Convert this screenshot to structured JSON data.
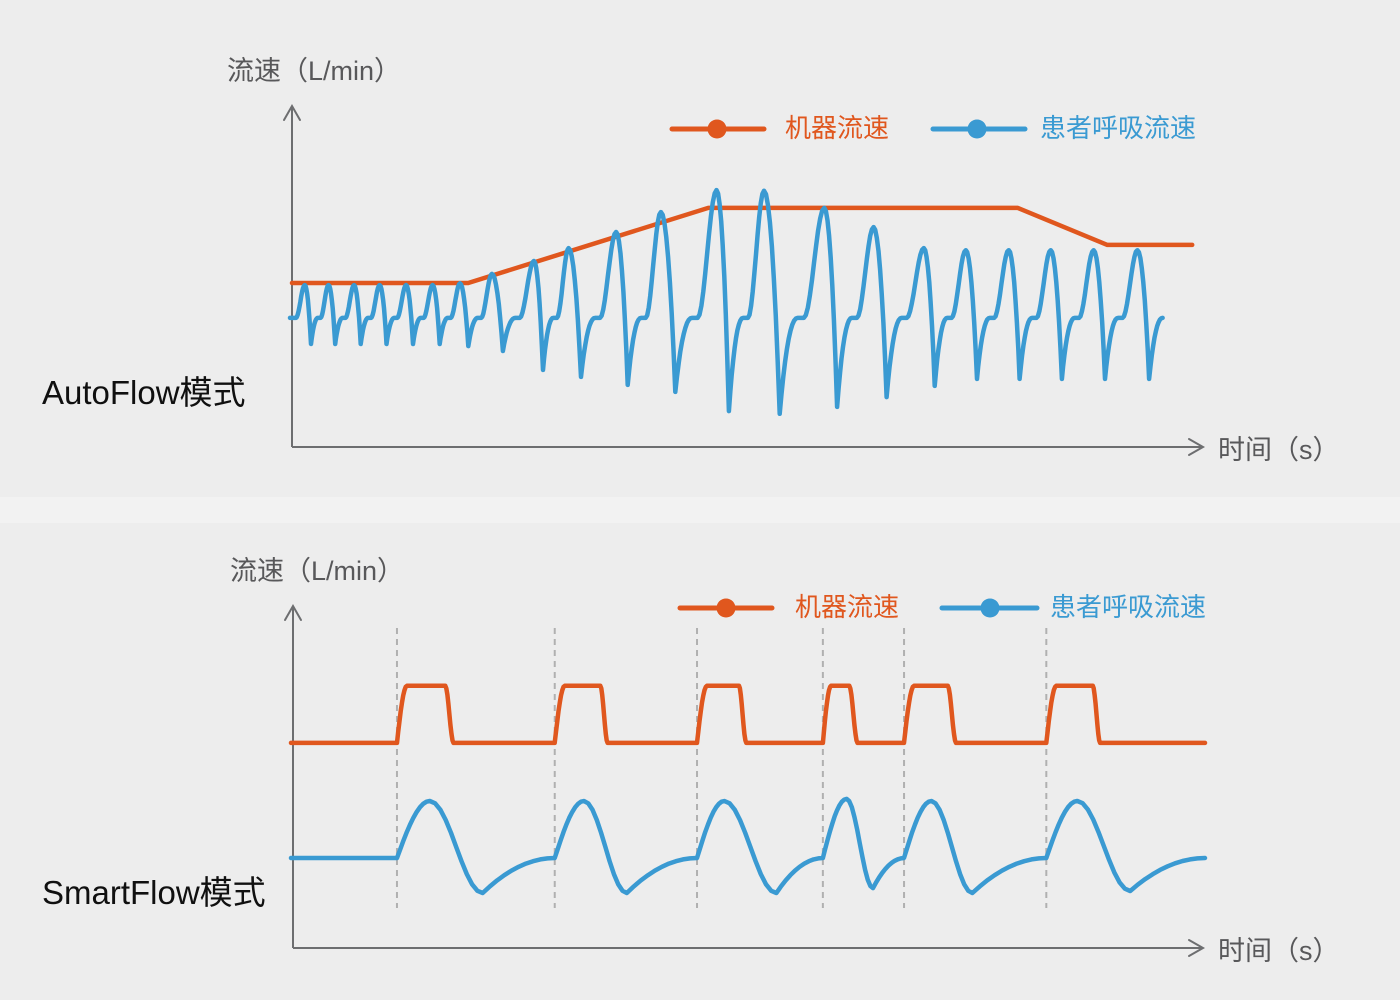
{
  "page": {
    "background": "#EDEDED"
  },
  "colors": {
    "machine": "#E0571E",
    "patient": "#3A9AD2",
    "axis": "#6D6E70",
    "label": "#58585A",
    "grid": "#B0B0B0",
    "mode_label": "#101010",
    "background": "#EDEDED"
  },
  "chart_data": [
    {
      "type": "line",
      "title": "AutoFlow模式",
      "xlabel": "时间（s）",
      "ylabel": "流速（L/min）",
      "legend_position": "top-right",
      "grid": false,
      "x_axis": {
        "min": 0,
        "max": 100,
        "ticks": [],
        "scale_note": "relative time, no tick labels shown"
      },
      "y_axis": {
        "min": 0,
        "max": 100,
        "ticks": [],
        "scale_note": "relative flow, no tick labels shown"
      },
      "series": [
        {
          "name": "机器流速",
          "color": "#E0571E",
          "style": "envelope",
          "points": [
            [
              0,
              47
            ],
            [
              19.3,
              47
            ],
            [
              45.6,
              68.5
            ],
            [
              79.5,
              68.5
            ],
            [
              89.3,
              57.9
            ],
            [
              98.6,
              57.9
            ]
          ]
        },
        {
          "name": "患者呼吸流速",
          "color": "#3A9AD2",
          "style": "breath-wave",
          "baseline": 37,
          "breaths_format": "[peak_t, peak_flow, trough_flow]",
          "breaths": [
            [
              1.4,
              46.4,
              29.5
            ],
            [
              4.0,
              46.4,
              29.5
            ],
            [
              6.8,
              46.4,
              29.5
            ],
            [
              9.6,
              46.4,
              29.5
            ],
            [
              12.5,
              46.4,
              29.5
            ],
            [
              15.4,
              46.4,
              29.5
            ],
            [
              18.4,
              46.9,
              28.9
            ],
            [
              21.9,
              49.6,
              27.5
            ],
            [
              26.5,
              53.3,
              22.1
            ],
            [
              30.3,
              57.0,
              20.1
            ],
            [
              35.5,
              61.6,
              17.8
            ],
            [
              40.4,
              67.3,
              15.8
            ],
            [
              46.5,
              73.6,
              10.3
            ],
            [
              51.7,
              73.4,
              9.5
            ],
            [
              58.3,
              68.5,
              11.5
            ],
            [
              63.7,
              63.0,
              14.3
            ],
            [
              69.2,
              57.0,
              17.5
            ],
            [
              73.8,
              56.4,
              19.5
            ],
            [
              78.5,
              56.4,
              19.5
            ],
            [
              83.1,
              56.4,
              19.5
            ],
            [
              87.8,
              56.4,
              19.5
            ],
            [
              92.6,
              56.4,
              19.5
            ]
          ]
        }
      ]
    },
    {
      "type": "line",
      "title": "SmartFlow模式",
      "xlabel": "时间（s）",
      "ylabel": "流速（L/min）",
      "legend_position": "top-right",
      "grid": true,
      "gridlines_t": [
        11.4,
        28.7,
        44.3,
        58.1,
        67.0,
        82.6
      ],
      "x_axis": {
        "min": 0,
        "max": 100,
        "ticks": [],
        "scale_note": "relative time, no tick labels shown"
      },
      "y_axis": {
        "min": 0,
        "max": 100,
        "ticks": [],
        "scale_note": "relative flow, no tick labels shown"
      },
      "series": [
        {
          "name": "机器流速",
          "color": "#E0571E",
          "style": "pulse-train",
          "baseline": 58.6,
          "pulse_top": 74.9,
          "pulses_format": "[rise_start_t, plateau_start_t, plateau_end_t, fall_end_t]",
          "pulses": [
            [
              11.4,
              12.5,
              16.7,
              17.6
            ],
            [
              28.7,
              29.8,
              33.7,
              34.5
            ],
            [
              44.3,
              45.4,
              48.9,
              49.7
            ],
            [
              58.1,
              59.0,
              61.0,
              61.9
            ],
            [
              67.0,
              68.1,
              71.8,
              72.7
            ],
            [
              82.6,
              83.7,
              87.7,
              88.5
            ]
          ]
        },
        {
          "name": "患者呼吸流速",
          "color": "#3A9AD2",
          "style": "breath-wave-smooth",
          "baseline": 25.7,
          "cycles_format": "[start_t, peak_t, trough_t, end_t, peak_flow, trough_flow]",
          "cycles": [
            [
              11.4,
              15.0,
              20.8,
              28.7,
              42.0,
              15.7
            ],
            [
              28.7,
              31.9,
              36.6,
              44.3,
              42.0,
              15.7
            ],
            [
              44.3,
              47.3,
              53.0,
              58.1,
              42.0,
              15.7
            ],
            [
              58.1,
              60.7,
              63.6,
              67.0,
              42.6,
              17.1
            ],
            [
              67.0,
              70.0,
              74.5,
              82.6,
              42.0,
              15.7
            ],
            [
              82.6,
              86.0,
              91.8,
              100,
              42.0,
              16.3
            ]
          ]
        }
      ]
    }
  ]
}
